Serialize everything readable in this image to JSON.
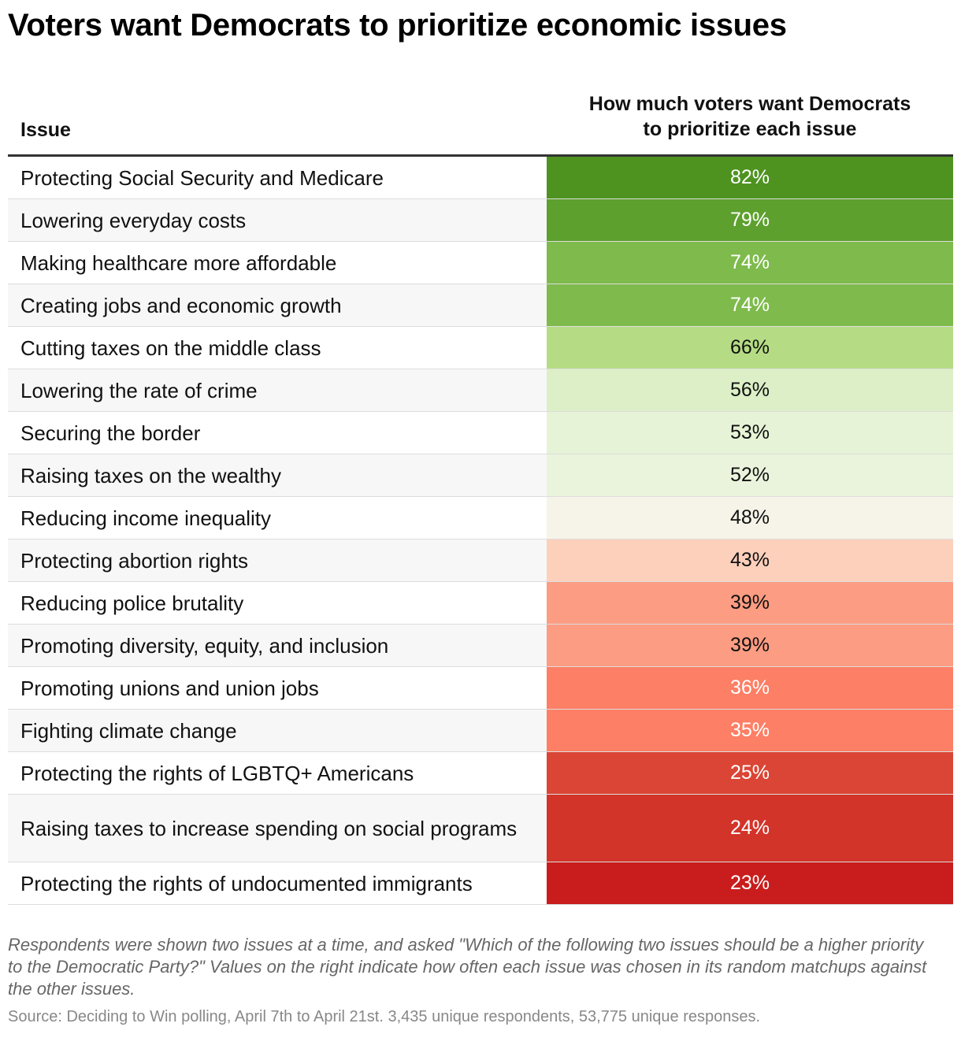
{
  "title": "Voters want Democrats to prioritize economic issues",
  "chart_data": {
    "type": "table",
    "columns": {
      "issue": "Issue",
      "value_line1": "How much voters want Democrats",
      "value_line2": "to prioritize each issue"
    },
    "rows": [
      {
        "issue": "Protecting Social Security and Medicare",
        "value": 82,
        "label": "82%",
        "color": "#4e9320",
        "text_color": "#ffffff"
      },
      {
        "issue": "Lowering everyday costs",
        "value": 79,
        "label": "79%",
        "color": "#5da02e",
        "text_color": "#ffffff"
      },
      {
        "issue": "Making healthcare more affordable",
        "value": 74,
        "label": "74%",
        "color": "#7eba4c",
        "text_color": "#ffffff"
      },
      {
        "issue": "Creating jobs and economic growth",
        "value": 74,
        "label": "74%",
        "color": "#7eba4c",
        "text_color": "#ffffff"
      },
      {
        "issue": "Cutting taxes on the middle class",
        "value": 66,
        "label": "66%",
        "color": "#b5dc84",
        "text_color": "#111111"
      },
      {
        "issue": "Lowering the rate of crime",
        "value": 56,
        "label": "56%",
        "color": "#dcefc6",
        "text_color": "#111111"
      },
      {
        "issue": "Securing the border",
        "value": 53,
        "label": "53%",
        "color": "#e6f3d6",
        "text_color": "#111111"
      },
      {
        "issue": "Raising taxes on the wealthy",
        "value": 52,
        "label": "52%",
        "color": "#eaf4dc",
        "text_color": "#111111"
      },
      {
        "issue": "Reducing income inequality",
        "value": 48,
        "label": "48%",
        "color": "#f6f4e8",
        "text_color": "#111111"
      },
      {
        "issue": "Protecting abortion rights",
        "value": 43,
        "label": "43%",
        "color": "#fdd0bc",
        "text_color": "#111111"
      },
      {
        "issue": "Reducing police brutality",
        "value": 39,
        "label": "39%",
        "color": "#fc9c82",
        "text_color": "#111111"
      },
      {
        "issue": "Promoting diversity, equity, and inclusion",
        "value": 39,
        "label": "39%",
        "color": "#fc9c82",
        "text_color": "#111111"
      },
      {
        "issue": "Promoting unions and union jobs",
        "value": 36,
        "label": "36%",
        "color": "#fd7f65",
        "text_color": "#ffffff"
      },
      {
        "issue": "Fighting climate change",
        "value": 35,
        "label": "35%",
        "color": "#fd7f65",
        "text_color": "#ffffff"
      },
      {
        "issue": "Protecting the rights of LGBTQ+ Americans",
        "value": 25,
        "label": "25%",
        "color": "#db4535",
        "text_color": "#ffffff"
      },
      {
        "issue": "Raising taxes to increase spending on social programs",
        "value": 24,
        "label": "24%",
        "color": "#d2342a",
        "text_color": "#ffffff"
      },
      {
        "issue": "Protecting the rights of undocumented immigrants",
        "value": 23,
        "label": "23%",
        "color": "#c91d1d",
        "text_color": "#ffffff"
      }
    ]
  },
  "note": "Respondents were shown two issues at a time, and asked \"Which of the following two issues should be a higher priority to the Democratic Party?\" Values on the right indicate how often each issue was chosen in its random matchups against the other issues.",
  "source": "Source: Deciding to Win polling, April 7th to April 21st. 3,435 unique respondents, 53,775 unique responses."
}
